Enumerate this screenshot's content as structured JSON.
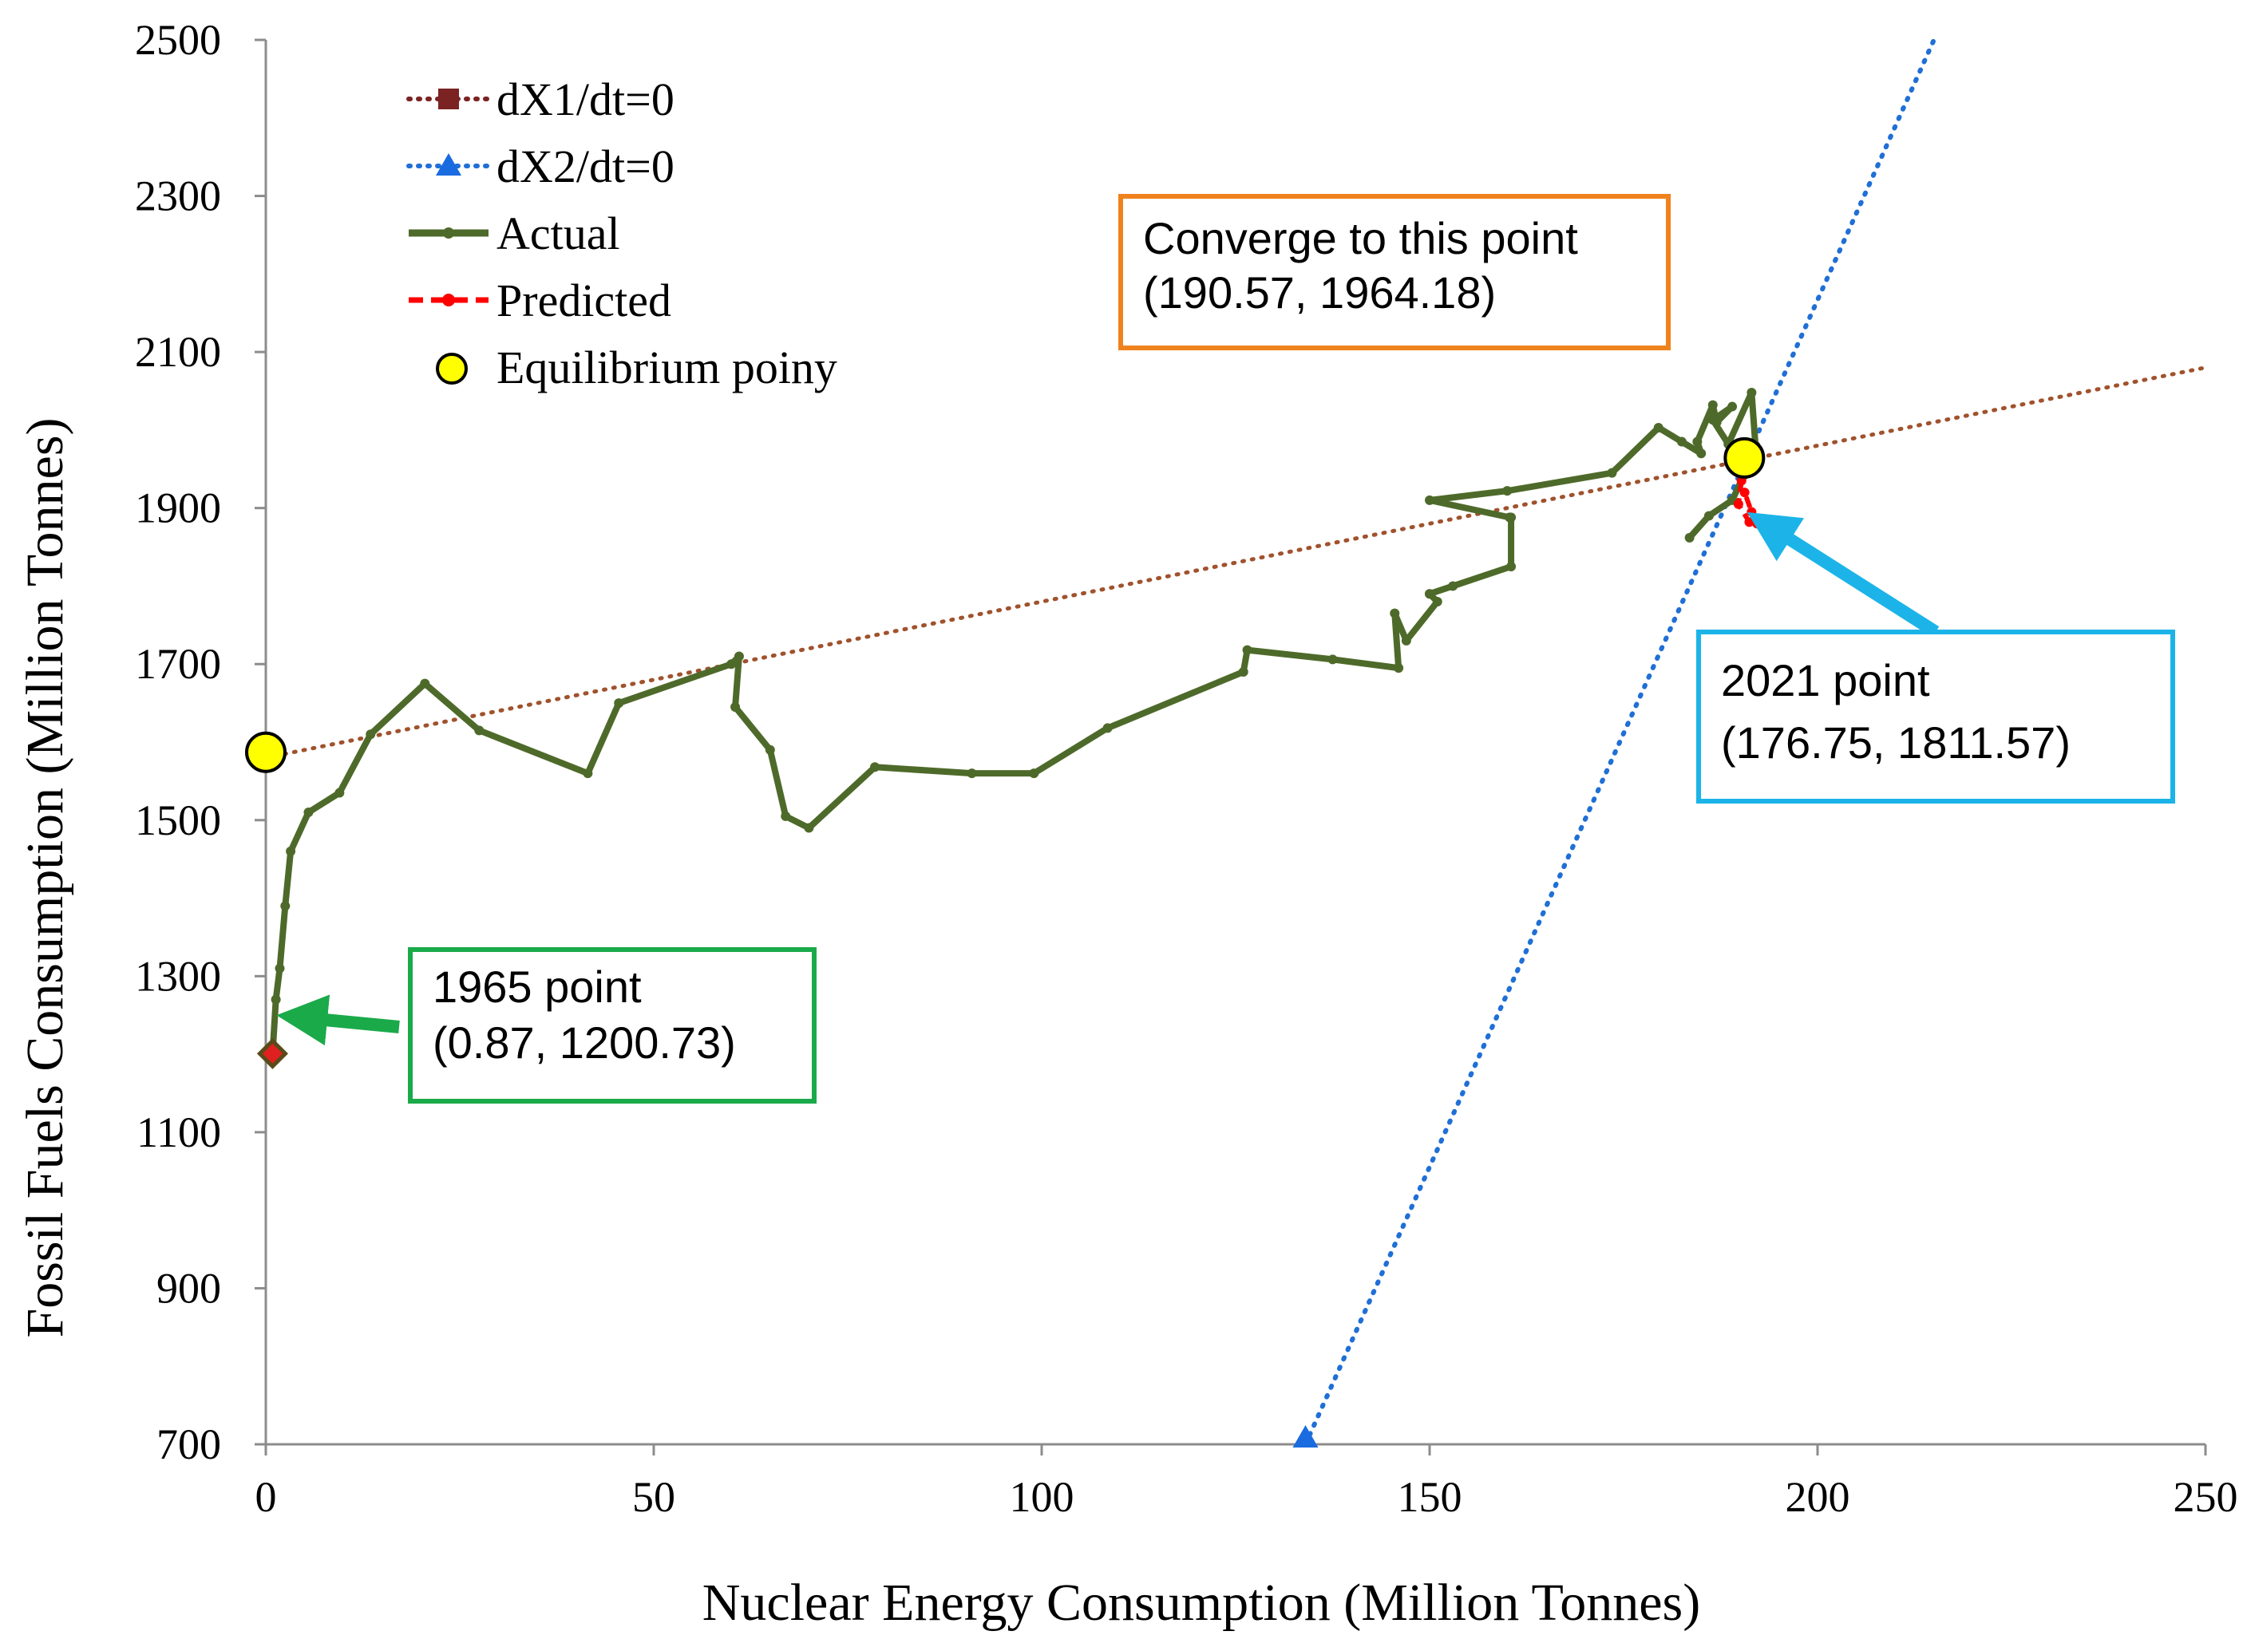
{
  "chart_data": {
    "type": "line",
    "xlabel": "Nuclear Energy Consumption (Million Tonnes)",
    "ylabel": "Fossil Fuels Consumption (Million Tonnes)",
    "xlim": [
      0,
      250
    ],
    "ylim": [
      700,
      2500
    ],
    "xticks": [
      0,
      50,
      100,
      150,
      200,
      250
    ],
    "yticks": [
      700,
      900,
      1100,
      1300,
      1500,
      1700,
      1900,
      2100,
      2300,
      2500
    ],
    "grid": false,
    "legend_position": "top-left",
    "series": [
      {
        "name": "dX1/dt=0",
        "style": "dotted",
        "color": "#a0522d",
        "marker_color": "#7b2323",
        "marker": "square",
        "x": [
          0,
          250
        ],
        "y": [
          1580,
          2080
        ]
      },
      {
        "name": "dX2/dt=0",
        "style": "dotted",
        "color": "#1f6fd6",
        "marker_color": "#1a6be0",
        "marker": "triangle",
        "x": [
          134,
          215
        ],
        "y": [
          700,
          2500
        ]
      },
      {
        "name": "Actual",
        "style": "solid",
        "color": "#4e6a2a",
        "marker": "dot",
        "x": [
          0.87,
          1.3,
          1.8,
          2.5,
          3.2,
          5.5,
          9.5,
          13.5,
          20.5,
          27.5,
          41.5,
          45.5,
          60,
          61,
          60.5,
          65,
          67,
          70,
          78.5,
          91,
          99,
          108.5,
          126,
          126.5,
          137.5,
          146,
          145.5,
          147,
          151,
          150,
          150,
          153,
          160.5,
          160.5,
          160.3,
          150,
          160,
          173.5,
          179.5,
          182.5,
          185,
          184.5,
          186.5,
          187,
          189,
          186.5,
          188.5,
          191.5,
          192,
          190.5,
          189,
          186,
          183.5
        ],
        "y": [
          1200.73,
          1270,
          1310,
          1390,
          1460,
          1510,
          1535,
          1610,
          1675,
          1615,
          1560,
          1650,
          1700,
          1710,
          1645,
          1590,
          1505,
          1490,
          1568,
          1560,
          1560,
          1618,
          1690,
          1718,
          1706,
          1695,
          1765,
          1730,
          1780,
          1790,
          1790,
          1800,
          1825,
          1888,
          1888,
          1910,
          1922,
          1945,
          2003,
          1985,
          1970,
          1985,
          2032,
          2010,
          2030,
          2013,
          1982,
          2048,
          1980,
          1942,
          1910,
          1890,
          1862
        ]
      },
      {
        "name": "Predicted",
        "style": "dashed",
        "color": "#ff0000",
        "marker": "dot",
        "x": [
          190.2,
          189.8,
          191.2,
          192.2,
          191.5,
          190.6
        ],
        "y": [
          1935,
          1905,
          1882,
          1880,
          1895,
          1920
        ]
      },
      {
        "name": "Equilibrium poiny",
        "style": "markers",
        "color": "#ffff00",
        "marker": "circle",
        "x": [
          0,
          190.57
        ],
        "y": [
          1587,
          1964.18
        ]
      }
    ],
    "start_marker": {
      "x": 0.87,
      "y": 1200.73,
      "color": "#e02020",
      "border": "#5a4a1a"
    },
    "annotations": [
      {
        "lines": [
          "Converge to this point",
          "(190.57, 1964.18)"
        ],
        "border_color": "#f0821e"
      },
      {
        "lines": [
          "2021 point",
          "(176.75, 1811.57)"
        ],
        "border_color": "#1cb4e8",
        "arrow_color": "#1cb4e8",
        "arrow_target": {
          "x": 192.5,
          "y": 1885
        }
      },
      {
        "lines": [
          "1965 point",
          "(0.87, 1200.73)"
        ],
        "border_color": "#1aaa4a",
        "arrow_color": "#1aaa4a",
        "arrow_target": {
          "x": 2.5,
          "y": 1245
        }
      }
    ]
  }
}
